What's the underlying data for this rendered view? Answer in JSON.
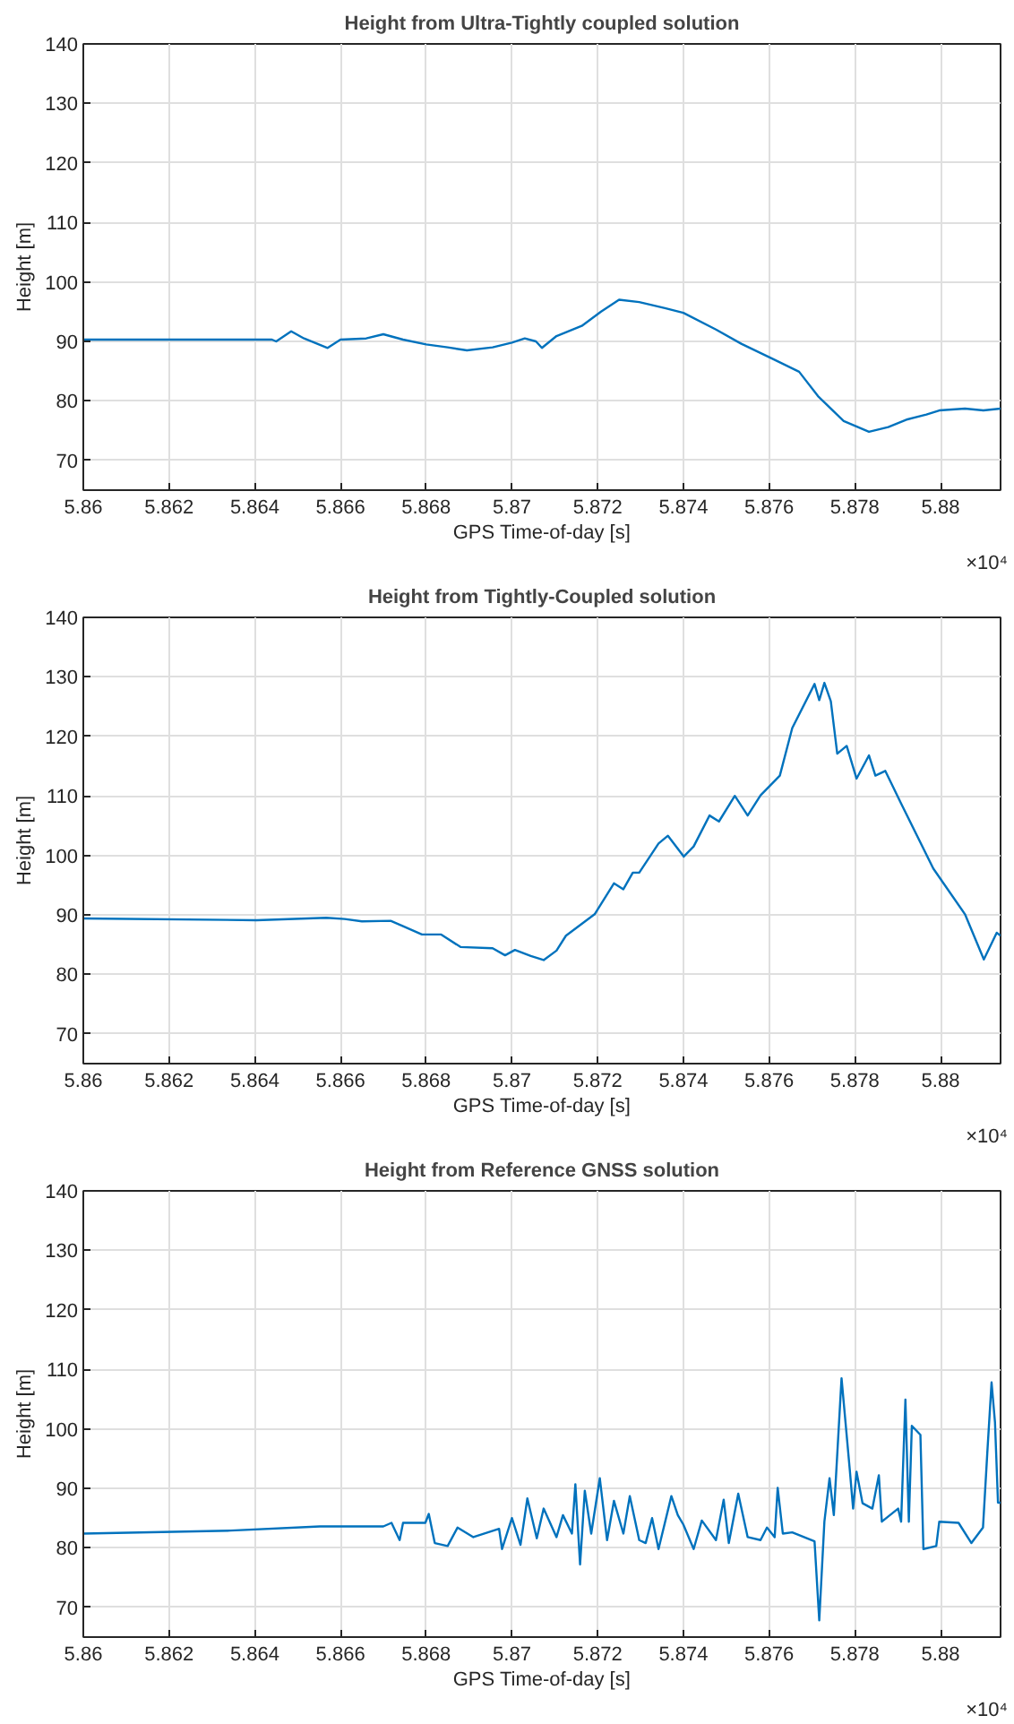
{
  "chart_data": [
    {
      "type": "line",
      "title": "Height from Ultra-Tightly coupled solution",
      "xlabel": "GPS Time-of-day [s]",
      "ylabel": "Height [m]",
      "annotations": [
        "×10⁴"
      ],
      "color": "#0072bd",
      "grid": true,
      "xlim": [
        5.86,
        5.8814
      ],
      "ylim": [
        65,
        140
      ],
      "xticks": [
        5.86,
        5.862,
        5.864,
        5.866,
        5.868,
        5.87,
        5.872,
        5.874,
        5.876,
        5.878,
        5.88
      ],
      "yticks": [
        70,
        80,
        90,
        100,
        110,
        120,
        130,
        140
      ],
      "x": [
        5.86,
        5.8644,
        5.8645,
        5.86485,
        5.86515,
        5.8657,
        5.866,
        5.8666,
        5.867,
        5.86746,
        5.868,
        5.8685,
        5.86895,
        5.86955,
        5.87,
        5.8703,
        5.87056,
        5.8707,
        5.87104,
        5.87163,
        5.87208,
        5.8725,
        5.87297,
        5.87357,
        5.874,
        5.87476,
        5.87535,
        5.8761,
        5.8767,
        5.87714,
        5.87774,
        5.87833,
        5.87878,
        5.87923,
        5.87967,
        5.87997,
        5.88057,
        5.881,
        5.8814
      ],
      "values": [
        90.3,
        90.3,
        90.0,
        91.7,
        90.5,
        88.9,
        90.3,
        90.5,
        91.2,
        90.3,
        89.5,
        89.0,
        88.5,
        89.0,
        89.8,
        90.5,
        90.0,
        88.9,
        90.9,
        92.6,
        95.0,
        97.0,
        96.6,
        95.6,
        94.8,
        92.0,
        89.6,
        87.0,
        84.9,
        80.8,
        76.6,
        74.8,
        75.6,
        76.9,
        77.7,
        78.4,
        78.7,
        78.4,
        78.7
      ]
    },
    {
      "type": "line",
      "title": "Height from Tightly-Coupled solution",
      "xlabel": "GPS Time-of-day [s]",
      "ylabel": "Height [m]",
      "annotations": [
        "×10⁴"
      ],
      "color": "#0072bd",
      "grid": true,
      "xlim": [
        5.86,
        5.8814
      ],
      "ylim": [
        65,
        140
      ],
      "xticks": [
        5.86,
        5.862,
        5.864,
        5.866,
        5.868,
        5.87,
        5.872,
        5.874,
        5.876,
        5.878,
        5.88
      ],
      "yticks": [
        70,
        80,
        90,
        100,
        110,
        120,
        130,
        140
      ],
      "x": [
        5.86,
        5.86404,
        5.86567,
        5.8661,
        5.8665,
        5.86717,
        5.86746,
        5.8679,
        5.86835,
        5.8688,
        5.86955,
        5.86984,
        5.87007,
        5.87044,
        5.87074,
        5.87104,
        5.87126,
        5.87193,
        5.87238,
        5.8726,
        5.87282,
        5.87297,
        5.87342,
        5.87364,
        5.87401,
        5.87424,
        5.87461,
        5.87483,
        5.8752,
        5.8755,
        5.8758,
        5.87625,
        5.87654,
        5.87706,
        5.87717,
        5.87729,
        5.87744,
        5.87759,
        5.87781,
        5.87804,
        5.87833,
        5.87848,
        5.87871,
        5.87908,
        5.87983,
        5.88057,
        5.88101,
        5.88131,
        5.8814
      ],
      "values": [
        89.4,
        89.1,
        89.5,
        89.3,
        88.9,
        89.0,
        88.1,
        86.7,
        86.7,
        84.6,
        84.4,
        83.2,
        84.1,
        83.1,
        82.4,
        84.0,
        86.5,
        90.1,
        95.3,
        94.3,
        97.1,
        97.1,
        102.0,
        103.3,
        99.8,
        101.5,
        106.7,
        105.7,
        110.0,
        106.7,
        110.1,
        113.4,
        121.4,
        128.8,
        126.1,
        129.0,
        125.9,
        117.1,
        118.4,
        112.9,
        116.8,
        113.4,
        114.2,
        108.7,
        97.8,
        90.1,
        82.5,
        87.0,
        86.5
      ]
    },
    {
      "type": "line",
      "title": "Height from Reference GNSS solution",
      "xlabel": "GPS Time-of-day [s]",
      "ylabel": "Height [m]",
      "annotations": [
        "×10⁴"
      ],
      "color": "#0072bd",
      "grid": true,
      "xlim": [
        5.86,
        5.8814
      ],
      "ylim": [
        65,
        140
      ],
      "xticks": [
        5.86,
        5.862,
        5.864,
        5.866,
        5.868,
        5.87,
        5.872,
        5.874,
        5.876,
        5.878,
        5.88
      ],
      "yticks": [
        70,
        80,
        90,
        100,
        110,
        120,
        130,
        140
      ],
      "x": [
        5.86,
        5.86344,
        5.86552,
        5.867,
        5.86719,
        5.86738,
        5.86746,
        5.86798,
        5.86806,
        5.8682,
        5.8685,
        5.86873,
        5.8691,
        5.8697,
        5.86977,
        5.87,
        5.8702,
        5.87036,
        5.87058,
        5.87074,
        5.87104,
        5.87119,
        5.8714,
        5.87148,
        5.87159,
        5.8717,
        5.87185,
        5.87205,
        5.87222,
        5.87238,
        5.8726,
        5.87275,
        5.87297,
        5.87312,
        5.87327,
        5.87342,
        5.87372,
        5.87387,
        5.874,
        5.87424,
        5.87443,
        5.87476,
        5.87494,
        5.87506,
        5.87528,
        5.8755,
        5.8758,
        5.87595,
        5.87613,
        5.8762,
        5.87632,
        5.87654,
        5.87706,
        5.87717,
        5.87729,
        5.87741,
        5.87751,
        5.87769,
        5.87788,
        5.87796,
        5.87804,
        5.87818,
        5.87841,
        5.87856,
        5.87863,
        5.87901,
        5.87908,
        5.87918,
        5.87926,
        5.87933,
        5.87953,
        5.8796,
        5.8799,
        5.87997,
        5.88042,
        5.88072,
        5.88099,
        5.88109,
        5.88119,
        5.88127,
        5.88134,
        5.8814
      ],
      "values": [
        82.4,
        82.9,
        83.6,
        83.6,
        84.2,
        81.3,
        84.2,
        84.2,
        85.7,
        80.8,
        80.3,
        83.4,
        81.8,
        83.2,
        79.8,
        85.0,
        80.5,
        88.3,
        81.6,
        86.6,
        81.8,
        85.5,
        82.4,
        90.7,
        77.2,
        89.6,
        82.4,
        91.7,
        81.3,
        87.9,
        82.4,
        88.7,
        81.3,
        80.8,
        85.0,
        79.8,
        88.7,
        85.5,
        83.9,
        79.8,
        84.6,
        81.3,
        88.1,
        80.8,
        89.1,
        81.8,
        81.3,
        83.4,
        81.8,
        90.1,
        82.4,
        82.6,
        81.1,
        67.8,
        84.4,
        91.7,
        85.5,
        108.5,
        93.3,
        86.6,
        92.8,
        87.5,
        86.6,
        92.2,
        84.4,
        86.6,
        84.4,
        104.9,
        84.4,
        100.5,
        99.0,
        79.8,
        80.3,
        84.4,
        84.2,
        80.8,
        83.4,
        95.9,
        107.8,
        101.1,
        87.6,
        87.6
      ]
    }
  ]
}
